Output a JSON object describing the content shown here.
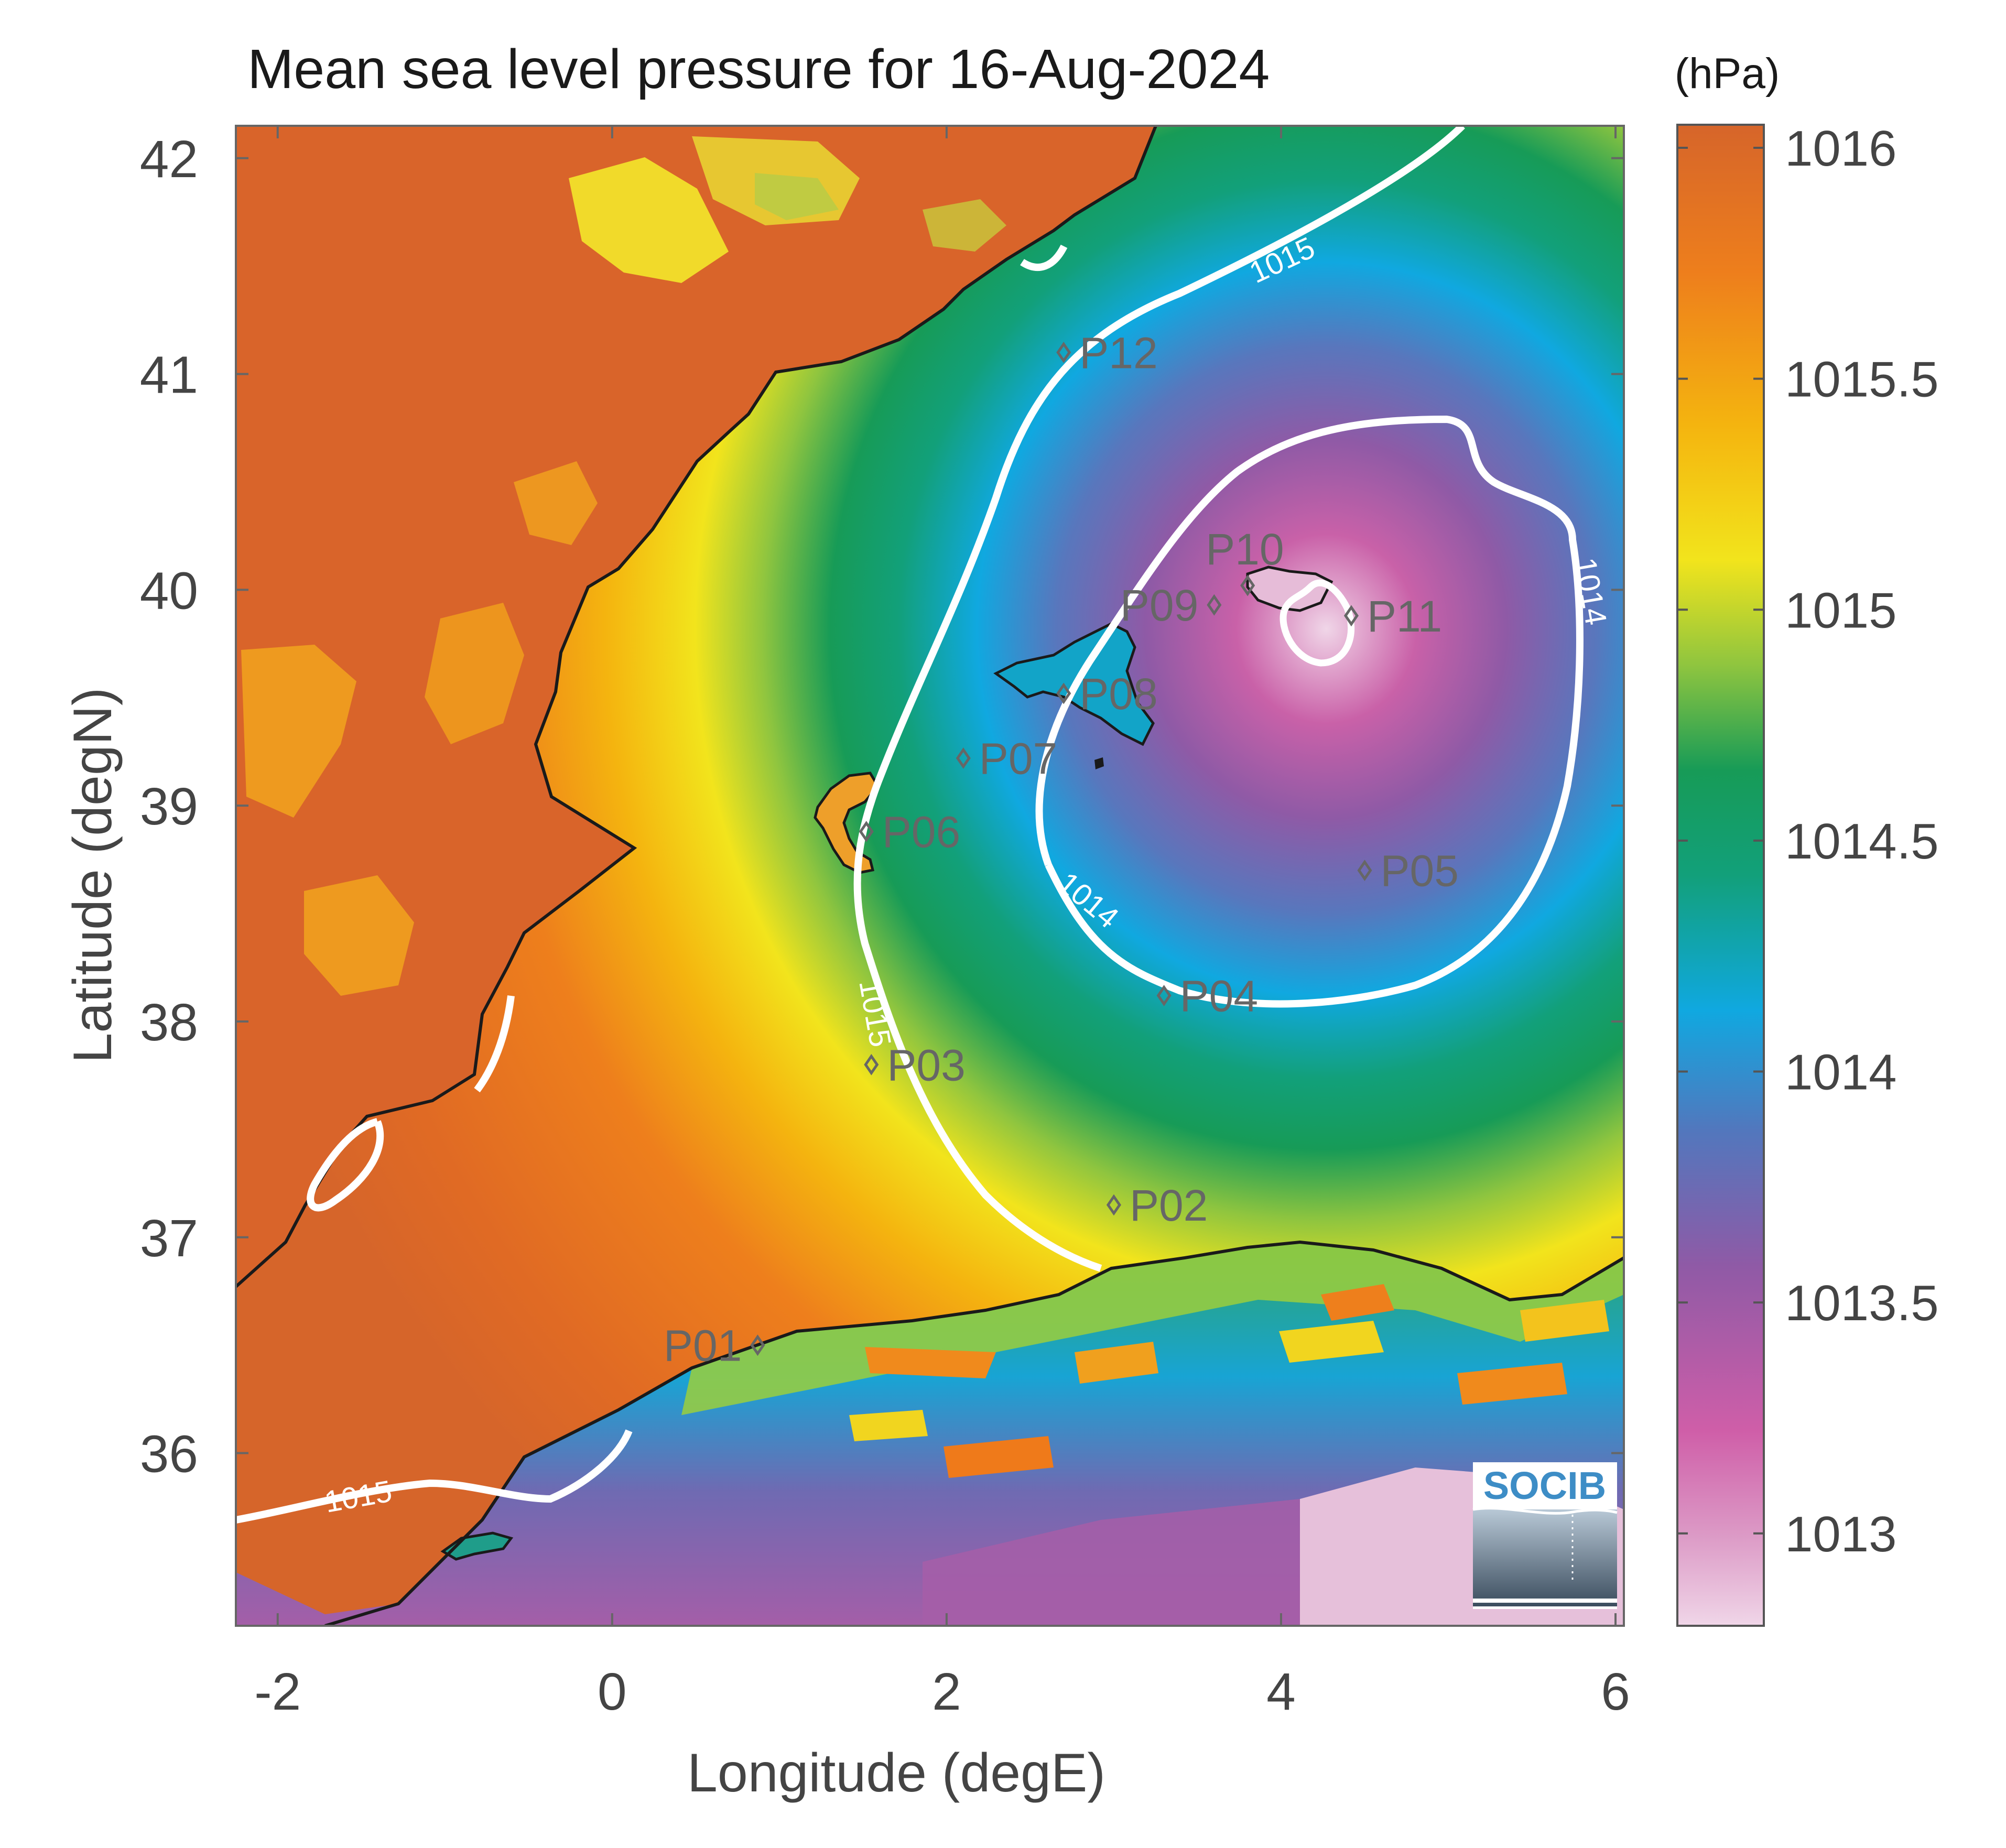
{
  "title": "Mean sea level pressure for 16-Aug-2024",
  "colorbar": {
    "unit": "(hPa)",
    "ticks": [
      "1016",
      "1015.5",
      "1015",
      "1014.5",
      "1014",
      "1013.5",
      "1013"
    ],
    "tick_values": [
      1016,
      1015.5,
      1015,
      1014.5,
      1014,
      1013.5,
      1013
    ],
    "range": [
      1012.8,
      1016.05
    ],
    "colors": [
      "#e6c0da",
      "#cf5ea8",
      "#8a5aa5",
      "#3a84cc",
      "#10a8e0",
      "#179b57",
      "#8fc53f",
      "#f2e41c",
      "#f4b40f",
      "#ee7f1c",
      "#d6652a"
    ]
  },
  "axes": {
    "xlabel": "Longitude (degE)",
    "ylabel": "Latitude (degN)",
    "xticks": [
      "-2",
      "0",
      "2",
      "4",
      "6"
    ],
    "xtick_values": [
      -2,
      0,
      2,
      4,
      6
    ],
    "yticks": [
      "42",
      "41",
      "40",
      "39",
      "38",
      "37",
      "36"
    ],
    "ytick_values": [
      42,
      41,
      40,
      39,
      38,
      37,
      36
    ],
    "xlim": [
      -2.25,
      6.05
    ],
    "ylim": [
      35.2,
      42.15
    ]
  },
  "contour_labels": [
    "1015",
    "1015",
    "1014",
    "1014",
    "1015"
  ],
  "stations": [
    {
      "id": "P01",
      "lon": 0.87,
      "lat": 36.5,
      "label_side": "left"
    },
    {
      "id": "P02",
      "lon": 3.0,
      "lat": 37.15,
      "label_side": "right"
    },
    {
      "id": "P03",
      "lon": 1.55,
      "lat": 37.8,
      "label_side": "right"
    },
    {
      "id": "P04",
      "lon": 3.3,
      "lat": 38.12,
      "label_side": "right"
    },
    {
      "id": "P05",
      "lon": 4.5,
      "lat": 38.7,
      "label_side": "right"
    },
    {
      "id": "P06",
      "lon": 1.52,
      "lat": 38.88,
      "label_side": "right"
    },
    {
      "id": "P07",
      "lon": 2.1,
      "lat": 39.22,
      "label_side": "right"
    },
    {
      "id": "P08",
      "lon": 2.7,
      "lat": 39.52,
      "label_side": "right"
    },
    {
      "id": "P09",
      "lon": 3.6,
      "lat": 39.93,
      "label_side": "left"
    },
    {
      "id": "P10",
      "lon": 3.8,
      "lat": 40.02,
      "label_side": "above"
    },
    {
      "id": "P11",
      "lon": 4.42,
      "lat": 39.88,
      "label_side": "right"
    },
    {
      "id": "P12",
      "lon": 2.7,
      "lat": 41.1,
      "label_side": "right"
    }
  ],
  "logo": {
    "text": "SOCIB",
    "color": "#3d8dc6"
  }
}
